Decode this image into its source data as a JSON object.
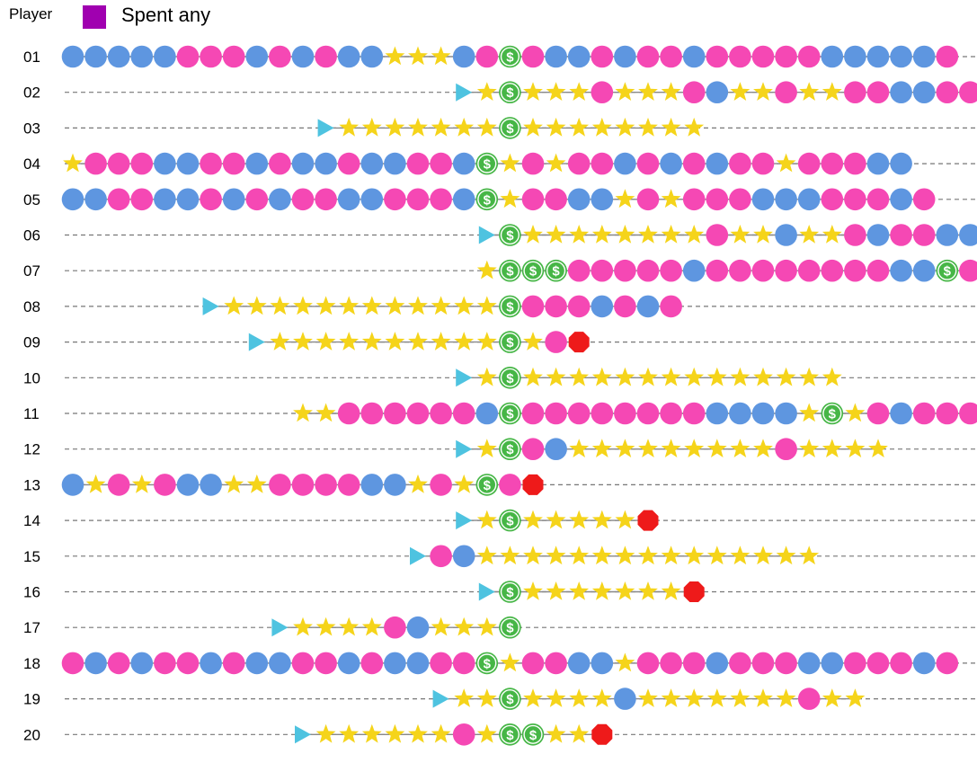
{
  "header": {
    "player_label": "Player"
  },
  "legend": {
    "label": "Spent any",
    "color": "#a000b0"
  },
  "colors": {
    "pink": "#f548b4",
    "blue": "#5e96e0",
    "star": "#f5d41a",
    "dollar": "#46b646",
    "start": "#4ec3e0",
    "stop": "#ee1a1a",
    "dash": "#777777"
  },
  "chart_data": {
    "type": "event-timeline",
    "symbol_key": {
      "P": "pink circle",
      "B": "blue circle",
      "S": "star",
      "D": "dollar",
      ">": "start",
      "X": "stop"
    },
    "players": [
      {
        "id": "01",
        "start": 0,
        "seq": "BBBBBPPPBPBPBBSSSBPDPBBPBPPBPPPPPBBBBBP"
      },
      {
        "id": "02",
        "start": 17,
        "seq": ">SDSSSPSSSPBSSPSSPPBBPP"
      },
      {
        "id": "03",
        "start": 11,
        "seq": ">SSSSSSSDSSSSSSSS"
      },
      {
        "id": "04",
        "start": 0,
        "seq": "SPPPBBPPBPBBPBBPPBDSPSPPBPBPBPPSPPPBB"
      },
      {
        "id": "05",
        "start": 0,
        "seq": "BBPPBBPBPBPPBBPPPBDSPPBBSPSPPPBBBPPPBP"
      },
      {
        "id": "06",
        "start": 18,
        "seq": ">DSSSSSSSSPSSBSSPBPPBB"
      },
      {
        "id": "07",
        "start": 18,
        "seq": "SDDDPPPPPBPPPPPPPPBBDP"
      },
      {
        "id": "08",
        "start": 6,
        "seq": ">SSSSSSSSSSSSDPPPBPBP"
      },
      {
        "id": "09",
        "start": 8,
        "seq": ">SSSSSSSSSSDSPX"
      },
      {
        "id": "10",
        "start": 17,
        "seq": ">SDSSSSSSSSSSSSSS"
      },
      {
        "id": "11",
        "start": 10,
        "seq": "SSPPPPPPBDPPPPPPPPBBBBSDSPBPPP"
      },
      {
        "id": "12",
        "start": 17,
        "seq": ">SDPBSSSSSSSSSPSSSS"
      },
      {
        "id": "13",
        "start": 0,
        "seq": "BSPSPBBSSPPPPBBSPSDPX"
      },
      {
        "id": "14",
        "start": 17,
        "seq": ">SDSSSSSX"
      },
      {
        "id": "15",
        "start": 15,
        "seq": ">PBSSSSSSSSSSSSSSS"
      },
      {
        "id": "16",
        "start": 18,
        "seq": ">DSSSSSSSX"
      },
      {
        "id": "17",
        "start": 9,
        "seq": ">SSSSPBSSSD"
      },
      {
        "id": "18",
        "start": 0,
        "seq": "PBPBPPBPBBPPBPBBPPDSPPBBSPPPBPPPBBPPPBP"
      },
      {
        "id": "19",
        "start": 16,
        "seq": ">SSDSSSSBSSSSSSSPSS"
      },
      {
        "id": "20",
        "start": 10,
        "seq": ">SSSSSSPSDDSSX"
      }
    ]
  }
}
